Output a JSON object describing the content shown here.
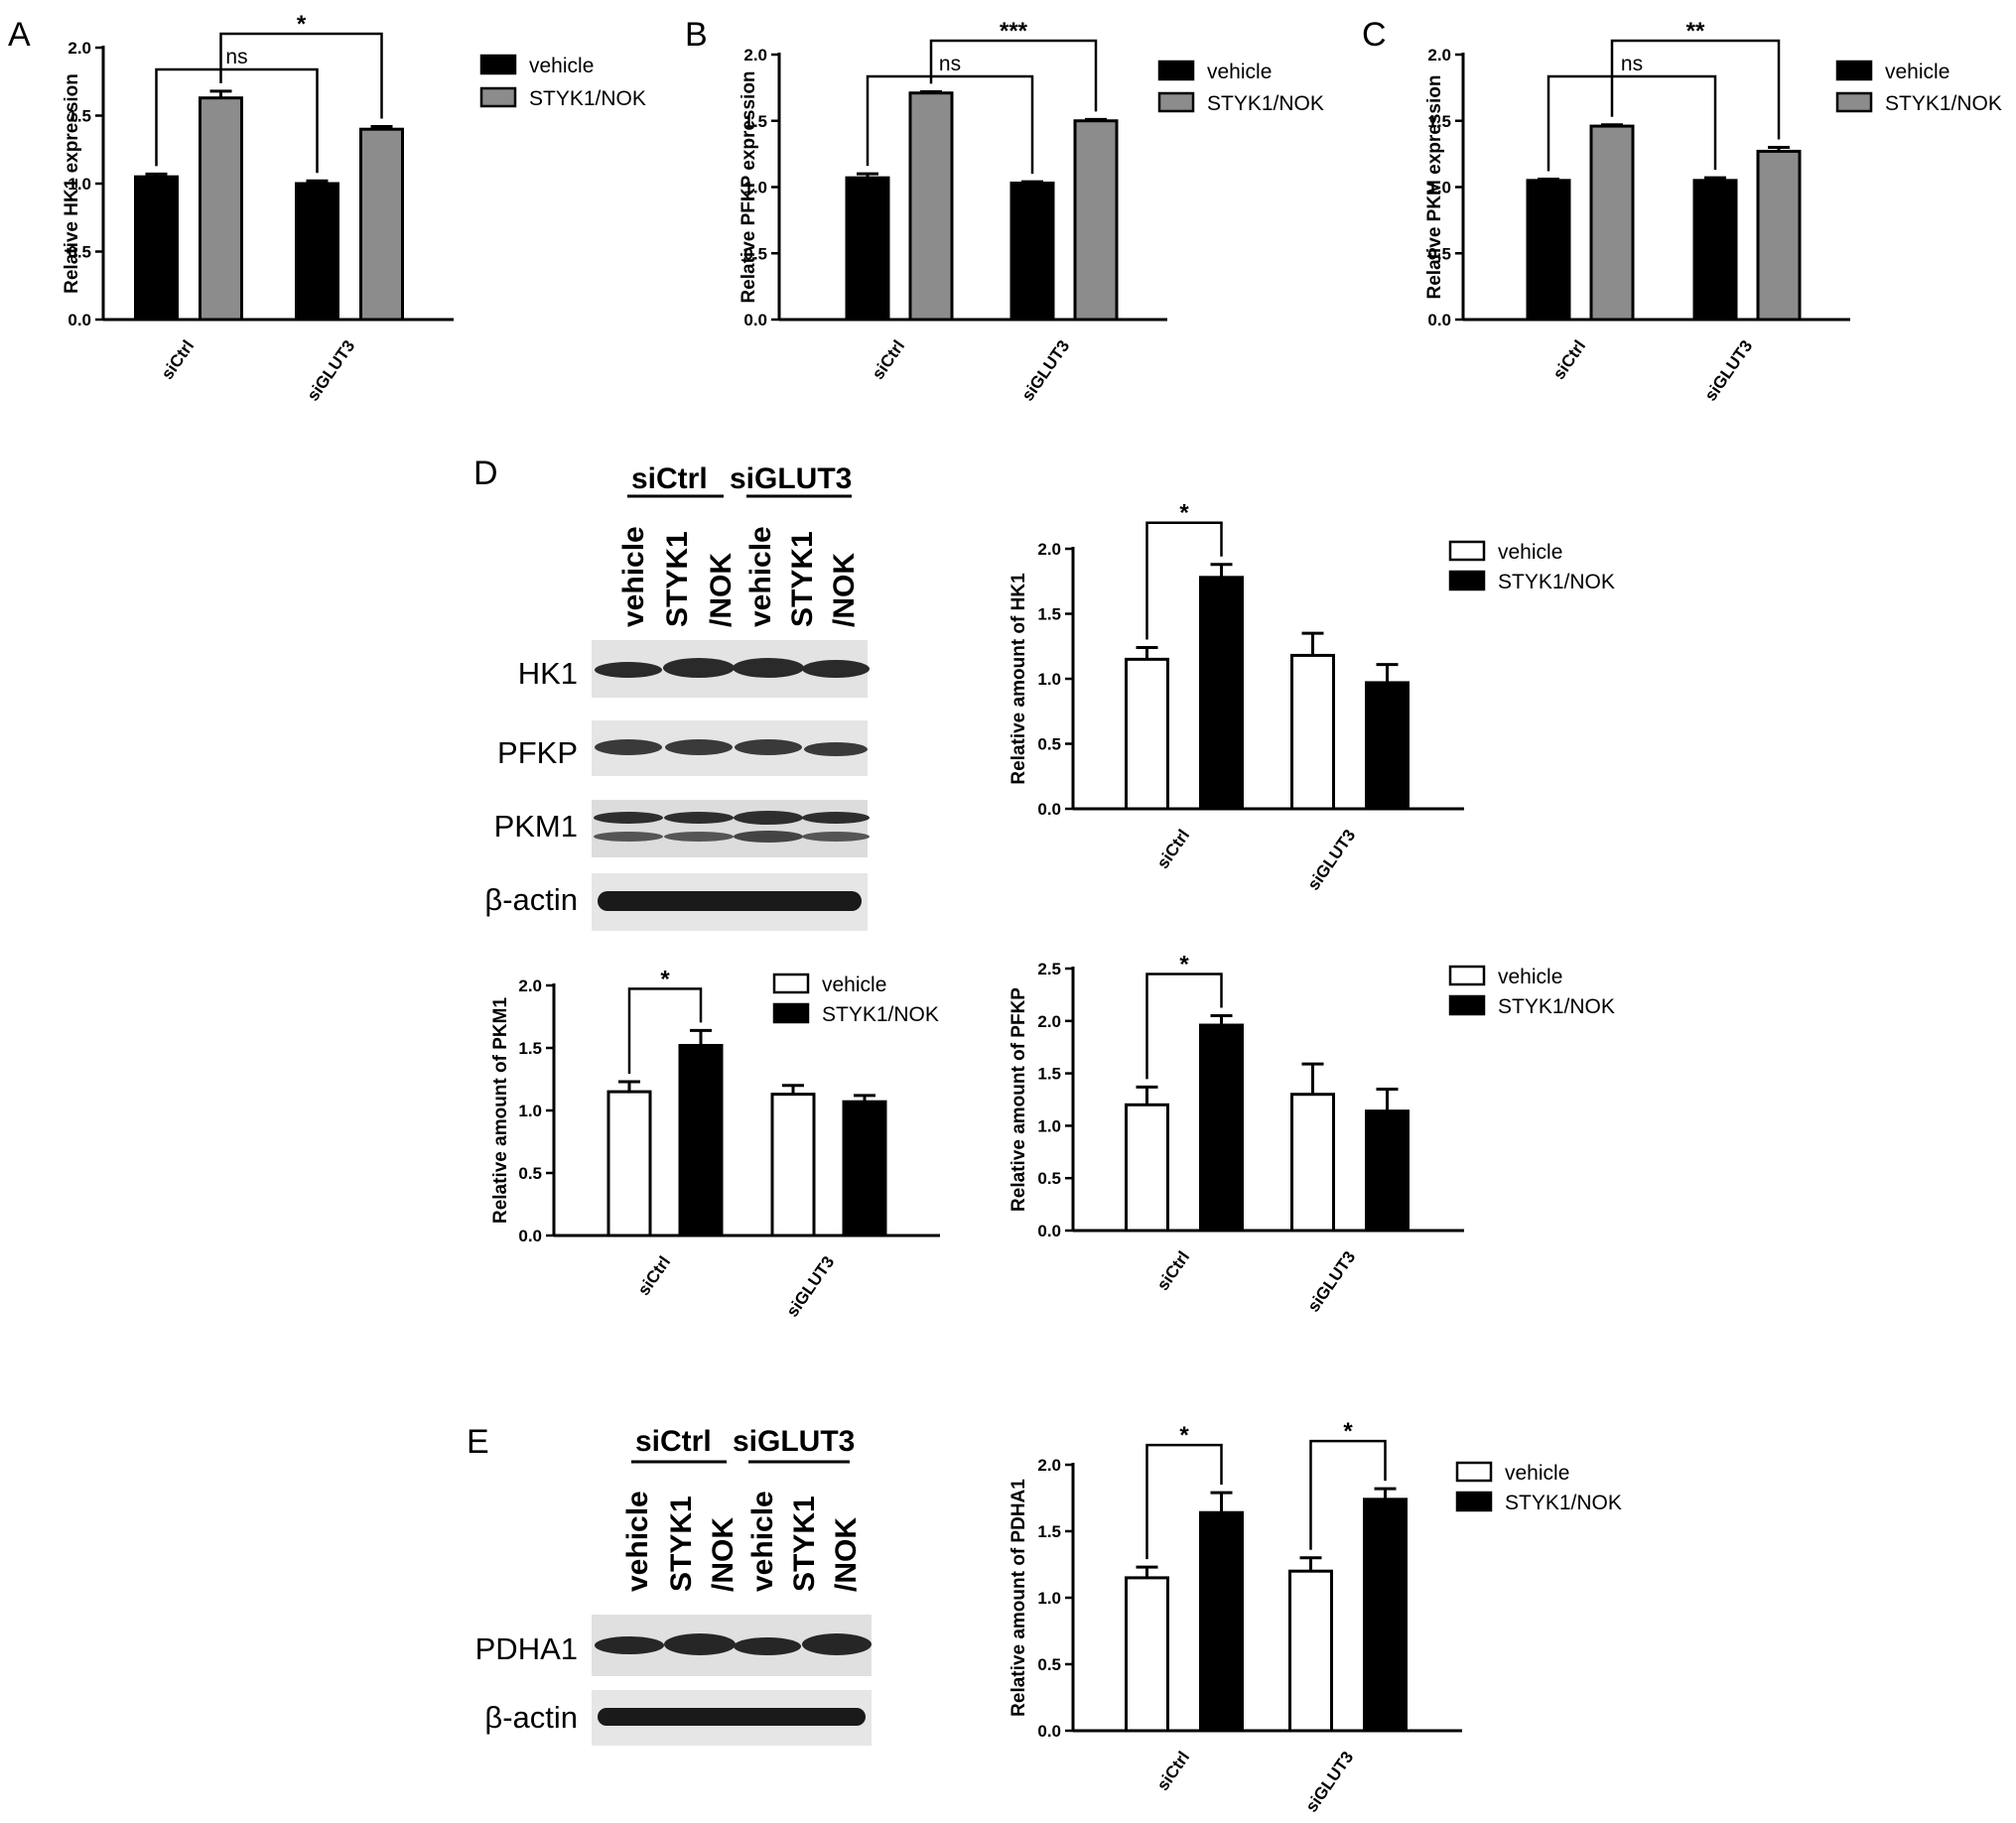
{
  "panels": {
    "A": "A",
    "B": "B",
    "C": "C",
    "D": "D",
    "E": "E"
  },
  "colors": {
    "vehicle_top": "#000000",
    "styk_top": "#8c8c8c",
    "vehicle_bottom": "#ffffff",
    "styk_bottom": "#000000"
  },
  "blot_D": {
    "groups": [
      "siCtrl",
      "siGLUT3"
    ],
    "lanes": [
      "vehicle",
      "STYK1",
      "/NOK",
      "vehicle",
      "STYK1",
      "/NOK"
    ],
    "rows": [
      "HK1",
      "PFKP",
      "PKM1",
      "β-actin"
    ]
  },
  "blot_E": {
    "groups": [
      "siCtrl",
      "siGLUT3"
    ],
    "lanes": [
      "vehicle",
      "STYK1",
      "/NOK",
      "vehicle",
      "STYK1",
      "/NOK"
    ],
    "rows": [
      "PDHA1",
      "β-actin"
    ]
  },
  "chart_data": [
    {
      "id": "A",
      "type": "bar",
      "categories": [
        "siCtrl",
        "siGLUT3"
      ],
      "series": [
        {
          "name": "vehicle",
          "values": [
            1.05,
            1.0
          ],
          "errors": [
            0.02,
            0.02
          ]
        },
        {
          "name": "STYK1/NOK",
          "values": [
            1.63,
            1.4
          ],
          "errors": [
            0.05,
            0.02
          ]
        }
      ],
      "ylabel": "Relative HK1 expression",
      "ylim": [
        0,
        2.0
      ],
      "yticks": [
        "0.0",
        "0.5",
        "1.0",
        "1.5",
        "2.0"
      ],
      "legend": "top-right",
      "comparisons": [
        {
          "label": "ns",
          "from": [
            0,
            0
          ],
          "to": [
            1,
            0
          ]
        },
        {
          "label": "*",
          "from": [
            0,
            1
          ],
          "to": [
            1,
            1
          ]
        }
      ]
    },
    {
      "id": "B",
      "type": "bar",
      "categories": [
        "siCtrl",
        "siGLUT3"
      ],
      "series": [
        {
          "name": "vehicle",
          "values": [
            1.07,
            1.03
          ],
          "errors": [
            0.03,
            0.01
          ]
        },
        {
          "name": "STYK1/NOK",
          "values": [
            1.71,
            1.5
          ],
          "errors": [
            0.01,
            0.01
          ]
        }
      ],
      "ylabel": "Relative PFKP expression",
      "ylim": [
        0,
        2.0
      ],
      "yticks": [
        "0.0",
        "0.5",
        "1.0",
        "1.5",
        "2.0"
      ],
      "legend": "top-right",
      "comparisons": [
        {
          "label": "ns",
          "from": [
            0,
            0
          ],
          "to": [
            1,
            0
          ]
        },
        {
          "label": "***",
          "from": [
            0,
            1
          ],
          "to": [
            1,
            1
          ]
        }
      ]
    },
    {
      "id": "C",
      "type": "bar",
      "categories": [
        "siCtrl",
        "siGLUT3"
      ],
      "series": [
        {
          "name": "vehicle",
          "values": [
            1.05,
            1.05
          ],
          "errors": [
            0.01,
            0.02
          ]
        },
        {
          "name": "STYK1/NOK",
          "values": [
            1.46,
            1.27
          ],
          "errors": [
            0.01,
            0.03
          ]
        }
      ],
      "ylabel": "Relative PKM expression",
      "ylim": [
        0,
        2.0
      ],
      "yticks": [
        "0.0",
        "0.5",
        "1.0",
        "1.5",
        "2.0"
      ],
      "legend": "top-right",
      "comparisons": [
        {
          "label": "ns",
          "from": [
            0,
            0
          ],
          "to": [
            1,
            0
          ]
        },
        {
          "label": "**",
          "from": [
            0,
            1
          ],
          "to": [
            1,
            1
          ]
        }
      ]
    },
    {
      "id": "D-HK1",
      "type": "bar",
      "categories": [
        "siCtrl",
        "siGLUT3"
      ],
      "series": [
        {
          "name": "vehicle",
          "values": [
            1.15,
            1.18
          ],
          "errors": [
            0.09,
            0.17
          ]
        },
        {
          "name": "STYK1/NOK",
          "values": [
            1.78,
            0.97
          ],
          "errors": [
            0.1,
            0.14
          ]
        }
      ],
      "ylabel": "Relative amount of HK1",
      "ylim": [
        0,
        2.0
      ],
      "yticks": [
        "0.0",
        "0.5",
        "1.0",
        "1.5",
        "2.0"
      ],
      "legend": "top-right",
      "comparisons": [
        {
          "label": "*",
          "from": [
            0,
            0
          ],
          "to": [
            0,
            1
          ]
        }
      ]
    },
    {
      "id": "D-PKM1",
      "type": "bar",
      "categories": [
        "siCtrl",
        "siGLUT3"
      ],
      "series": [
        {
          "name": "vehicle",
          "values": [
            1.15,
            1.13
          ],
          "errors": [
            0.08,
            0.07
          ]
        },
        {
          "name": "STYK1/NOK",
          "values": [
            1.52,
            1.07
          ],
          "errors": [
            0.12,
            0.05
          ]
        }
      ],
      "ylabel": "Relative amount of PKM1",
      "ylim": [
        0,
        2.0
      ],
      "yticks": [
        "0.0",
        "0.5",
        "1.0",
        "1.5",
        "2.0"
      ],
      "legend": "top-right",
      "comparisons": [
        {
          "label": "*",
          "from": [
            0,
            0
          ],
          "to": [
            0,
            1
          ]
        }
      ]
    },
    {
      "id": "D-PFKP",
      "type": "bar",
      "categories": [
        "siCtrl",
        "siGLUT3"
      ],
      "series": [
        {
          "name": "vehicle",
          "values": [
            1.2,
            1.3
          ],
          "errors": [
            0.17,
            0.29
          ]
        },
        {
          "name": "STYK1/NOK",
          "values": [
            1.96,
            1.14
          ],
          "errors": [
            0.09,
            0.21
          ]
        }
      ],
      "ylabel": "Relative amount of PFKP",
      "ylim": [
        0,
        2.5
      ],
      "yticks": [
        "0.0",
        "0.5",
        "1.0",
        "1.5",
        "2.0",
        "2.5"
      ],
      "legend": "top-right",
      "comparisons": [
        {
          "label": "*",
          "from": [
            0,
            0
          ],
          "to": [
            0,
            1
          ]
        }
      ]
    },
    {
      "id": "E-PDHA1",
      "type": "bar",
      "categories": [
        "siCtrl",
        "siGLUT3"
      ],
      "series": [
        {
          "name": "vehicle",
          "values": [
            1.15,
            1.2
          ],
          "errors": [
            0.08,
            0.1
          ]
        },
        {
          "name": "STYK1/NOK",
          "values": [
            1.64,
            1.74
          ],
          "errors": [
            0.15,
            0.08
          ]
        }
      ],
      "ylabel": "Relative amount of PDHA1",
      "ylim": [
        0,
        2.0
      ],
      "yticks": [
        "0.0",
        "0.5",
        "1.0",
        "1.5",
        "2.0"
      ],
      "legend": "top-right",
      "comparisons": [
        {
          "label": "*",
          "from": [
            0,
            0
          ],
          "to": [
            0,
            1
          ]
        },
        {
          "label": "*",
          "from": [
            1,
            0
          ],
          "to": [
            1,
            1
          ]
        }
      ]
    }
  ]
}
